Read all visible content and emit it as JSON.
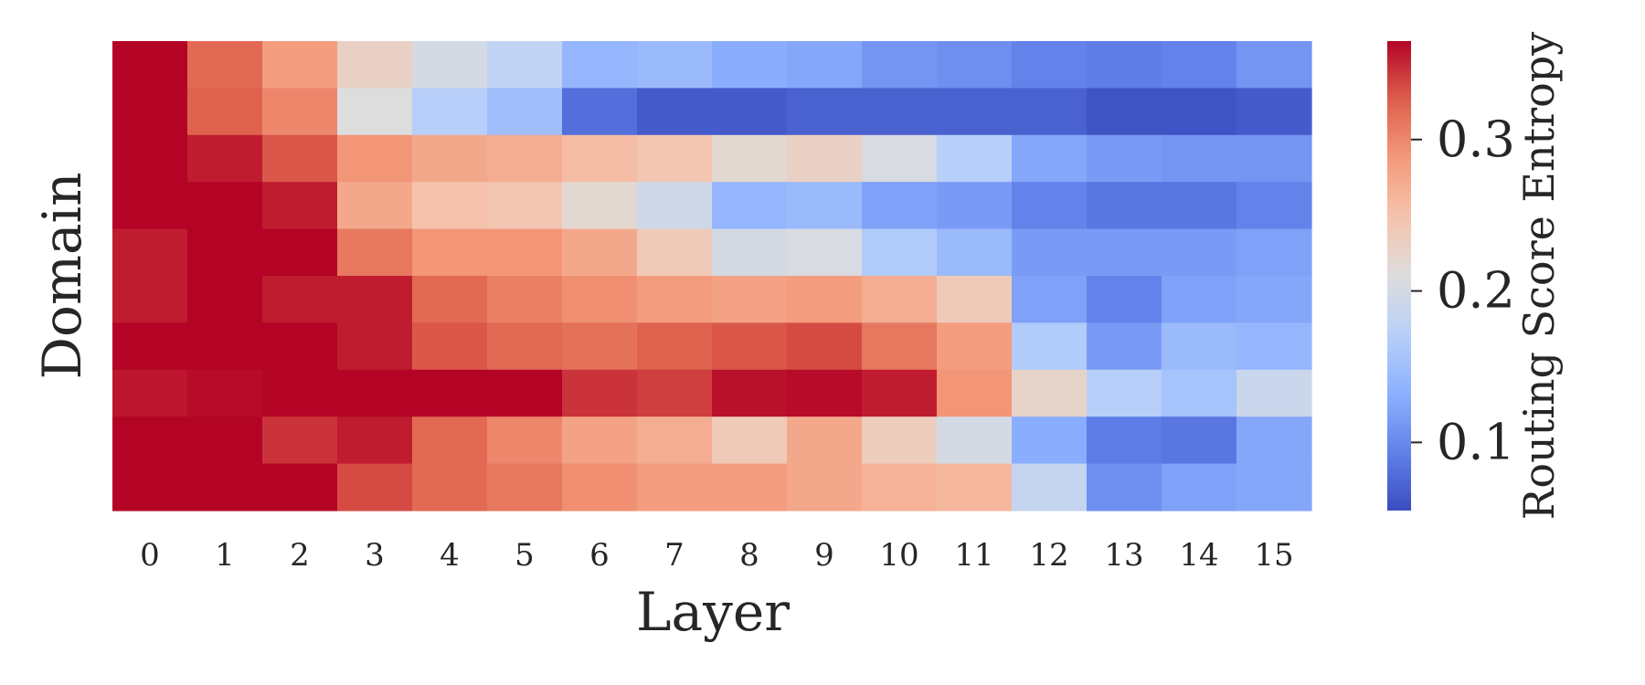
{
  "chart_data": {
    "type": "heatmap",
    "xlabel": "Layer",
    "ylabel": "Domain",
    "x_categories": [
      "0",
      "1",
      "2",
      "3",
      "4",
      "5",
      "6",
      "7",
      "8",
      "9",
      "10",
      "11",
      "12",
      "13",
      "14",
      "15"
    ],
    "y_categories": [],
    "colormap": "coolwarm",
    "vmin": 0.055,
    "vmax": 0.365,
    "values": [
      [
        0.365,
        0.32,
        0.285,
        0.23,
        0.2,
        0.18,
        0.14,
        0.145,
        0.13,
        0.125,
        0.11,
        0.105,
        0.095,
        0.09,
        0.095,
        0.11
      ],
      [
        0.365,
        0.325,
        0.3,
        0.21,
        0.17,
        0.15,
        0.08,
        0.065,
        0.065,
        0.07,
        0.07,
        0.07,
        0.07,
        0.06,
        0.06,
        0.065
      ],
      [
        0.365,
        0.355,
        0.33,
        0.29,
        0.275,
        0.27,
        0.255,
        0.245,
        0.22,
        0.23,
        0.205,
        0.17,
        0.125,
        0.115,
        0.11,
        0.11
      ],
      [
        0.365,
        0.365,
        0.355,
        0.275,
        0.25,
        0.245,
        0.22,
        0.195,
        0.14,
        0.145,
        0.12,
        0.115,
        0.095,
        0.085,
        0.085,
        0.095
      ],
      [
        0.355,
        0.365,
        0.365,
        0.31,
        0.29,
        0.29,
        0.275,
        0.24,
        0.2,
        0.205,
        0.165,
        0.145,
        0.115,
        0.115,
        0.115,
        0.12
      ],
      [
        0.355,
        0.365,
        0.355,
        0.355,
        0.32,
        0.305,
        0.295,
        0.285,
        0.28,
        0.285,
        0.27,
        0.24,
        0.12,
        0.095,
        0.12,
        0.125
      ],
      [
        0.365,
        0.365,
        0.365,
        0.355,
        0.33,
        0.32,
        0.315,
        0.325,
        0.33,
        0.335,
        0.31,
        0.285,
        0.165,
        0.115,
        0.145,
        0.14
      ],
      [
        0.358,
        0.362,
        0.365,
        0.365,
        0.365,
        0.365,
        0.345,
        0.34,
        0.36,
        0.362,
        0.355,
        0.29,
        0.225,
        0.17,
        0.155,
        0.19
      ],
      [
        0.365,
        0.365,
        0.345,
        0.355,
        0.32,
        0.3,
        0.28,
        0.27,
        0.24,
        0.275,
        0.235,
        0.2,
        0.13,
        0.09,
        0.085,
        0.125
      ],
      [
        0.365,
        0.365,
        0.365,
        0.335,
        0.32,
        0.31,
        0.295,
        0.285,
        0.285,
        0.275,
        0.265,
        0.26,
        0.185,
        0.105,
        0.12,
        0.125
      ]
    ],
    "colorbar": {
      "label": "Routing Score Entropy",
      "ticks": [
        0.1,
        0.2,
        0.3
      ],
      "tick_labels": [
        "0.1",
        "0.2",
        "0.3"
      ]
    },
    "grid": false,
    "legend": "none"
  }
}
